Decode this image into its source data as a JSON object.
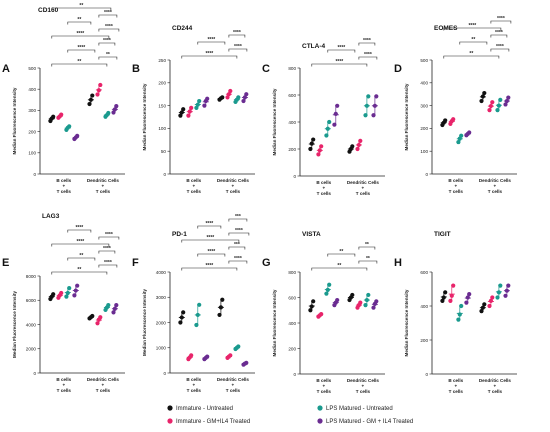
{
  "groups": [
    "B cells\n+\nT cells",
    "Dendritic Cells\n+\nT cells"
  ],
  "ylabel": "Median Fluorescence Intensity",
  "colors": {
    "immature_untreated": "#111111",
    "immature_gm_il4": "#e8246a",
    "lps_untreated": "#1a9a8e",
    "lps_gm_il4": "#6a2c91"
  },
  "legend": [
    {
      "label": "Immature - Untreated",
      "color_key": "immature_untreated"
    },
    {
      "label": "Immature - GM+IL4 Treated",
      "color_key": "immature_gm_il4"
    },
    {
      "label": "LPS Matured - Untreated",
      "color_key": "lps_untreated"
    },
    {
      "label": "LPS Matured - GM + IL4 Treated",
      "color_key": "lps_gm_il4"
    }
  ],
  "chart_data": [
    {
      "panel": "A",
      "type": "scatter",
      "title": "CD160",
      "ylabel": "Median Fluorescence Intensity",
      "ylim": [
        0,
        500
      ],
      "yticks": [
        0,
        100,
        200,
        300,
        400,
        500
      ],
      "series": [
        {
          "name": "Immature - Untreated",
          "values": [
            [
              250,
              262,
              270
            ],
            [
              330,
              350,
              370
            ]
          ]
        },
        {
          "name": "Immature - GM+IL4 Treated",
          "values": [
            [
              265,
              272,
              280
            ],
            [
              375,
              395,
              420
            ]
          ]
        },
        {
          "name": "LPS Matured - Untreated",
          "values": [
            [
              208,
              218,
              225
            ],
            [
              270,
              278,
              288
            ]
          ]
        },
        {
          "name": "LPS Matured - GM + IL4 Treated",
          "values": [
            [
              165,
              172,
              180
            ],
            [
              290,
              305,
              320
            ]
          ]
        }
      ],
      "significance": [
        "**",
        "**",
        "****",
        "****",
        "****",
        "****",
        "**",
        "****",
        "**"
      ]
    },
    {
      "panel": "B",
      "type": "scatter",
      "title": "CD244",
      "ylabel": "Median Fluorescence Intensity",
      "ylim": [
        0,
        250
      ],
      "yticks": [
        0,
        50,
        100,
        150,
        200,
        250
      ],
      "series": [
        {
          "name": "Immature - Untreated",
          "values": [
            [
              128,
              135,
              142
            ],
            [
              163,
              166,
              168
            ]
          ]
        },
        {
          "name": "Immature - GM+IL4 Treated",
          "values": [
            [
              128,
              137,
              145
            ],
            [
              168,
              175,
              182
            ]
          ]
        },
        {
          "name": "LPS Matured - Untreated",
          "values": [
            [
              145,
              152,
              160
            ],
            [
              158,
              163,
              168
            ]
          ]
        },
        {
          "name": "LPS Matured - GM + IL4 Treated",
          "values": [
            [
              150,
              160,
              165
            ],
            [
              160,
              168,
              175
            ]
          ]
        }
      ],
      "significance": [
        "****",
        "****",
        "****",
        "****"
      ]
    },
    {
      "panel": "C",
      "type": "scatter",
      "title": "CTLA-4",
      "ylabel": "Median Fluorescence Intensity",
      "ylim": [
        0,
        800
      ],
      "yticks": [
        0,
        200,
        400,
        600,
        800
      ],
      "series": [
        {
          "name": "Immature - Untreated",
          "values": [
            [
              200,
              240,
              270
            ],
            [
              180,
              200,
              220
            ]
          ]
        },
        {
          "name": "Immature - GM+IL4 Treated",
          "values": [
            [
              160,
              190,
              220
            ],
            [
              200,
              230,
              260
            ]
          ]
        },
        {
          "name": "LPS Matured - Untreated",
          "values": [
            [
              300,
              350,
              400
            ],
            [
              450,
              520,
              590
            ]
          ]
        },
        {
          "name": "LPS Matured - GM + IL4 Treated",
          "values": [
            [
              380,
              460,
              520
            ],
            [
              450,
              520,
              590
            ]
          ]
        }
      ],
      "significance": [
        "****",
        "****",
        "****",
        "****"
      ]
    },
    {
      "panel": "D",
      "type": "scatter",
      "title": "EOMES",
      "ylabel": "Median Fluorescence Intensity",
      "ylim": [
        0,
        500
      ],
      "yticks": [
        0,
        100,
        200,
        300,
        400,
        500
      ],
      "series": [
        {
          "name": "Immature - Untreated",
          "values": [
            [
              215,
              225,
              235
            ],
            [
              320,
              340,
              355
            ]
          ]
        },
        {
          "name": "Immature - GM+IL4 Treated",
          "values": [
            [
              220,
              232,
              240
            ],
            [
              280,
              298,
              315
            ]
          ]
        },
        {
          "name": "LPS Matured - Untreated",
          "values": [
            [
              140,
              155,
              168
            ],
            [
              280,
              300,
              325
            ]
          ]
        },
        {
          "name": "LPS Matured - GM + IL4 Treated",
          "values": [
            [
              170,
              176,
              182
            ],
            [
              305,
              320,
              335
            ]
          ]
        }
      ],
      "significance": [
        "**",
        "****",
        "**",
        "****",
        "****",
        "****"
      ]
    },
    {
      "panel": "E",
      "type": "scatter",
      "title": "LAG3",
      "ylabel": "Median Fluorescence Intensity",
      "ylim": [
        0,
        8000
      ],
      "yticks": [
        0,
        2000,
        4000,
        6000,
        8000
      ],
      "series": [
        {
          "name": "Immature - Untreated",
          "values": [
            [
              6100,
              6300,
              6500
            ],
            [
              4500,
              4600,
              4700
            ]
          ]
        },
        {
          "name": "Immature - GM+IL4 Treated",
          "values": [
            [
              6200,
              6400,
              6600
            ],
            [
              4100,
              4400,
              4600
            ]
          ]
        },
        {
          "name": "LPS Matured - Untreated",
          "values": [
            [
              6300,
              6600,
              7000
            ],
            [
              5200,
              5400,
              5600
            ]
          ]
        },
        {
          "name": "LPS Matured - GM + IL4 Treated",
          "values": [
            [
              6400,
              6800,
              7200
            ],
            [
              5000,
              5300,
              5600
            ]
          ]
        }
      ],
      "significance": [
        "**",
        "****",
        "**",
        "****",
        "****",
        "****",
        "****"
      ]
    },
    {
      "panel": "F",
      "type": "scatter",
      "title": "PD-1",
      "ylabel": "Median Fluorescence Intensity",
      "ylim": [
        0,
        4000
      ],
      "yticks": [
        0,
        1000,
        2000,
        3000,
        4000
      ],
      "series": [
        {
          "name": "Immature - Untreated",
          "values": [
            [
              2000,
              2200,
              2400
            ],
            [
              2300,
              2600,
              2900
            ]
          ]
        },
        {
          "name": "Immature - GM+IL4 Treated",
          "values": [
            [
              550,
              620,
              700
            ],
            [
              600,
              650,
              700
            ]
          ]
        },
        {
          "name": "LPS Matured - Untreated",
          "values": [
            [
              1900,
              2300,
              2700
            ],
            [
              950,
              1000,
              1050
            ]
          ]
        },
        {
          "name": "LPS Matured - GM + IL4 Treated",
          "values": [
            [
              550,
              600,
              650
            ],
            [
              330,
              370,
              400
            ]
          ]
        }
      ],
      "significance": [
        "****",
        "****",
        "****",
        "***",
        "****",
        "****",
        "****",
        "***"
      ]
    },
    {
      "panel": "G",
      "type": "scatter",
      "title": "VISTA",
      "ylabel": "Median Fluorescence Intensity",
      "ylim": [
        0,
        800
      ],
      "yticks": [
        0,
        200,
        400,
        600,
        800
      ],
      "series": [
        {
          "name": "Immature - Untreated",
          "values": [
            [
              500,
              530,
              570
            ],
            [
              580,
              600,
              620
            ]
          ]
        },
        {
          "name": "Immature - GM+IL4 Treated",
          "values": [
            [
              450,
              460,
              470
            ],
            [
              520,
              540,
              560
            ]
          ]
        },
        {
          "name": "LPS Matured - Untreated",
          "values": [
            [
              630,
              660,
              700
            ],
            [
              540,
              580,
              620
            ]
          ]
        },
        {
          "name": "LPS Matured - GM + IL4 Treated",
          "values": [
            [
              540,
              560,
              580
            ],
            [
              520,
              550,
              570
            ]
          ]
        }
      ],
      "significance": [
        "**",
        "**",
        "**",
        "**"
      ]
    },
    {
      "panel": "H",
      "type": "scatter",
      "title": "TIGIT",
      "ylabel": "Median Fluorescence Intensity",
      "ylim": [
        0,
        600
      ],
      "yticks": [
        0,
        200,
        400,
        600
      ],
      "series": [
        {
          "name": "Immature - Untreated",
          "values": [
            [
              430,
              450,
              480
            ],
            [
              370,
              390,
              410
            ]
          ]
        },
        {
          "name": "Immature - GM+IL4 Treated",
          "values": [
            [
              430,
              460,
              520
            ],
            [
              400,
              430,
              450
            ]
          ]
        },
        {
          "name": "LPS Matured - Untreated",
          "values": [
            [
              320,
              350,
              400
            ],
            [
              450,
              480,
              520
            ]
          ]
        },
        {
          "name": "LPS Matured - GM + IL4 Treated",
          "values": [
            [
              420,
              450,
              470
            ],
            [
              460,
              490,
              520
            ]
          ]
        }
      ],
      "significance": []
    }
  ]
}
